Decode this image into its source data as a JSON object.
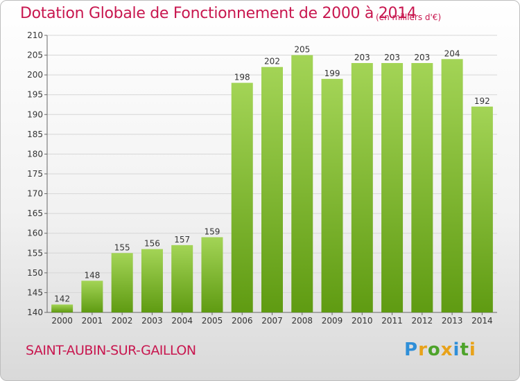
{
  "chart_data": {
    "type": "bar",
    "title": "Dotation Globale de Fonctionnement de 2000 à 2014",
    "subtitle": "(en milliers d'€)",
    "categories": [
      "2000",
      "2001",
      "2002",
      "2003",
      "2004",
      "2005",
      "2006",
      "2007",
      "2008",
      "2009",
      "2010",
      "2011",
      "2012",
      "2013",
      "2014"
    ],
    "values": [
      142,
      148,
      155,
      156,
      157,
      159,
      198,
      202,
      205,
      199,
      203,
      203,
      203,
      204,
      192
    ],
    "ylim": [
      140,
      210
    ],
    "yticks": [
      140,
      145,
      150,
      155,
      160,
      165,
      170,
      175,
      180,
      185,
      190,
      195,
      200,
      205,
      210
    ],
    "grid": true,
    "colors": {
      "bar_top": "#a3d456",
      "bar_bottom": "#5f9b12",
      "title": "#c8174f",
      "grid": "#d6d6d6"
    }
  },
  "footer": {
    "commune": "SAINT-AUBIN-SUR-GAILLON",
    "logo_text": "Proxiti",
    "logo_colors": [
      "#2f8fd8",
      "#e8a21a",
      "#4da32a",
      "#e8a21a",
      "#2f8fd8",
      "#4da32a",
      "#e8a21a"
    ]
  }
}
